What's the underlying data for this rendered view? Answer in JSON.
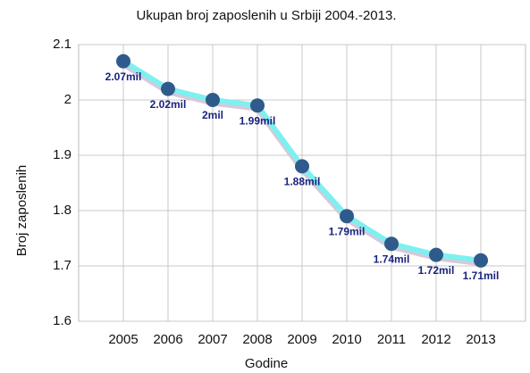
{
  "chart_data": {
    "type": "line",
    "title": "Ukupan broj zaposlenih u Srbiji 2004.-2013.",
    "xlabel": "Godine",
    "ylabel": "Broj zaposlenih",
    "x": [
      2005,
      2006,
      2007,
      2008,
      2009,
      2010,
      2011,
      2012,
      2013
    ],
    "values": [
      2.07,
      2.02,
      2,
      1.99,
      1.88,
      1.79,
      1.74,
      1.72,
      1.71
    ],
    "value_labels": [
      "2.07mil",
      "2.02mil",
      "2mil",
      "1.99mil",
      "1.88mil",
      "1.79mil",
      "1.74mil",
      "1.72mil",
      "1.71mil"
    ],
    "color": "#7ef0f0",
    "marker_color": "#2f5b8c",
    "xlim": [
      2004,
      2014
    ],
    "xticks": [
      2005,
      2006,
      2007,
      2008,
      2009,
      2010,
      2011,
      2012,
      2013
    ],
    "ylim": [
      1.6,
      2.1
    ],
    "yticks": [
      1.6,
      1.7,
      1.8,
      1.9,
      2,
      2.1
    ],
    "grid": true
  }
}
